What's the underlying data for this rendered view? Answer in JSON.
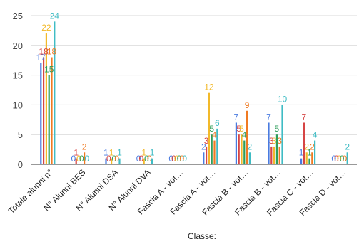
{
  "chart_data": {
    "type": "bar",
    "title": "",
    "xlabel": "Classe:",
    "ylabel": "",
    "ylim": [
      0,
      25
    ],
    "yticks": [
      0,
      5,
      10,
      15,
      20,
      25
    ],
    "grid": true,
    "categories": [
      "Totale alunni n°",
      "N° Alunni BES",
      "N° Alunni DSA",
      "N° Alunni DVA",
      "Fascia A - vot…",
      "Fascia A - vot…",
      "Fascia B - vot…",
      "Fascia B - vot…",
      "Fascia C - vot…",
      "Fascia D - vot…"
    ],
    "series": [
      {
        "color": "#4a7be0",
        "values": [
          17,
          0,
          1,
          0,
          0,
          2,
          7,
          7,
          1,
          0
        ]
      },
      {
        "color": "#d64545",
        "values": [
          18,
          1,
          0,
          0,
          0,
          3,
          5,
          3,
          7,
          0
        ]
      },
      {
        "color": "#f2b92a",
        "values": [
          22,
          0,
          1,
          1,
          0,
          12,
          5,
          3,
          2,
          0
        ]
      },
      {
        "color": "#2e9e5b",
        "values": [
          15,
          0,
          0,
          0,
          0,
          5,
          4,
          5,
          1,
          0
        ]
      },
      {
        "color": "#f07a22",
        "values": [
          18,
          2,
          0,
          0,
          0,
          4,
          9,
          3,
          2,
          0
        ]
      },
      {
        "color": "#3fbcc4",
        "values": [
          24,
          0,
          1,
          1,
          0,
          6,
          2,
          10,
          4,
          2
        ]
      }
    ]
  }
}
